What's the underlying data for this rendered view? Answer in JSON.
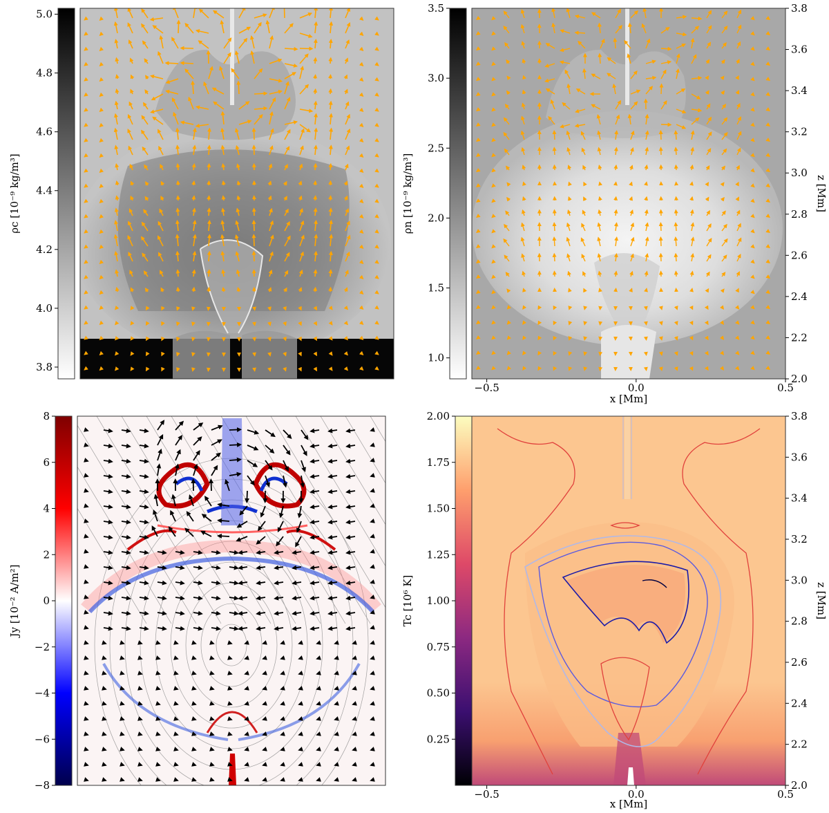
{
  "chart_data": [
    {
      "type": "heatmap",
      "panel": "top-left",
      "colorbar": {
        "label": "ρc [10⁻⁹ kg/m³]",
        "range": [
          3.76,
          5.02
        ],
        "ticks": [
          "3.8",
          "4.0",
          "4.2",
          "4.4",
          "4.6",
          "4.8",
          "5.0"
        ],
        "tick_values": [
          3.8,
          4.0,
          4.2,
          4.4,
          4.6,
          4.8,
          5.0
        ],
        "colormap": "gray_r",
        "colors": [
          "#ffffff",
          "#000000"
        ]
      },
      "overlay": "velocity-arrows",
      "arrow_color": "#ffa500"
    },
    {
      "type": "heatmap",
      "panel": "top-right",
      "colorbar": {
        "label": "ρn [10⁻⁹ kg/m³]",
        "range": [
          0.85,
          3.5
        ],
        "ticks": [
          "1.0",
          "1.5",
          "2.0",
          "2.5",
          "3.0",
          "3.5"
        ],
        "tick_values": [
          1.0,
          1.5,
          2.0,
          2.5,
          3.0,
          3.5
        ],
        "colormap": "gray_r",
        "colors": [
          "#ffffff",
          "#000000"
        ]
      },
      "xlabel": "x [Mm]",
      "xlim": [
        -0.55,
        0.5
      ],
      "xticks": [
        "−0.5",
        "0.0",
        "0.5"
      ],
      "xtick_values": [
        -0.5,
        0.0,
        0.5
      ],
      "ylabel": "z [Mm]",
      "ylim": [
        2.0,
        3.8
      ],
      "yticks": [
        "2.0",
        "2.2",
        "2.4",
        "2.6",
        "2.8",
        "3.0",
        "3.2",
        "3.4",
        "3.6",
        "3.8"
      ],
      "ytick_values": [
        2.0,
        2.2,
        2.4,
        2.6,
        2.8,
        3.0,
        3.2,
        3.4,
        3.6,
        3.8
      ],
      "overlay": "velocity-arrows",
      "arrow_color": "#ffa500"
    },
    {
      "type": "heatmap",
      "panel": "bottom-left",
      "colorbar": {
        "label": "Jy [10⁻² A/m²]",
        "range": [
          -8,
          8
        ],
        "ticks": [
          "−8",
          "−6",
          "−4",
          "−2",
          "0",
          "2",
          "4",
          "6",
          "8"
        ],
        "tick_values": [
          -8,
          -6,
          -4,
          -2,
          0,
          2,
          4,
          6,
          8
        ],
        "colormap": "seismic",
        "colors": [
          "#00004c",
          "#0000ff",
          "#ffffff",
          "#ff0000",
          "#7f0000"
        ]
      },
      "overlay": "field-lines-and-arrows",
      "arrow_color": "#000000"
    },
    {
      "type": "heatmap",
      "panel": "bottom-right",
      "colorbar": {
        "label": "Tc [10⁶ K]",
        "range": [
          0.0,
          2.0
        ],
        "ticks": [
          "0.25",
          "0.50",
          "0.75",
          "1.00",
          "1.25",
          "1.50",
          "1.75",
          "2.00"
        ],
        "tick_values": [
          0.25,
          0.5,
          0.75,
          1.0,
          1.25,
          1.5,
          1.75,
          2.0
        ],
        "colormap": "magma",
        "colors": [
          "#000004",
          "#3b0f70",
          "#8c2981",
          "#de4968",
          "#fe9f6d",
          "#fcfdbf"
        ]
      },
      "xlabel": "x [Mm]",
      "xlim": [
        -0.55,
        0.5
      ],
      "xticks": [
        "−0.5",
        "0.0",
        "0.5"
      ],
      "xtick_values": [
        -0.5,
        0.0,
        0.5
      ],
      "ylabel": "z [Mm]",
      "ylim": [
        2.0,
        3.8
      ],
      "yticks": [
        "2.0",
        "2.2",
        "2.4",
        "2.6",
        "2.8",
        "3.0",
        "3.2",
        "3.4",
        "3.6",
        "3.8"
      ],
      "ytick_values": [
        2.0,
        2.2,
        2.4,
        2.6,
        2.8,
        3.0,
        3.2,
        3.4,
        3.6,
        3.8
      ],
      "overlay": "temperature-contours",
      "contour_colors": [
        "#e0413c",
        "#b0b8e8",
        "#5a5ae0",
        "#1a1aa8",
        "#000040"
      ]
    }
  ]
}
